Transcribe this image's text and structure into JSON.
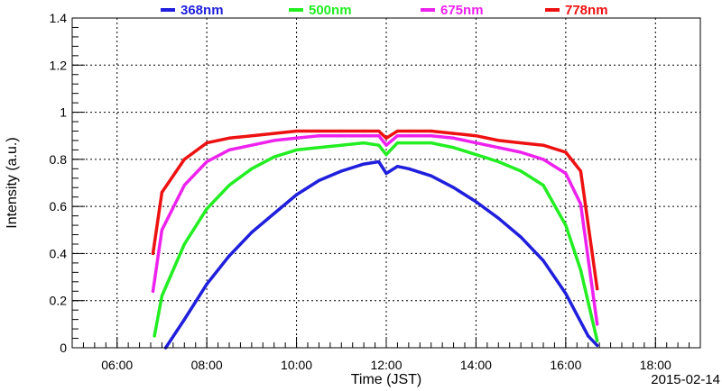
{
  "chart_data": {
    "type": "scatter",
    "xlabel": "Time (JST)",
    "ylabel": "Intensity (a.u.)",
    "date_label": "2015-02-14",
    "xlim": [
      "05:00",
      "19:00"
    ],
    "ylim": [
      0,
      1.4
    ],
    "x_ticks": [
      "06:00",
      "08:00",
      "10:00",
      "12:00",
      "14:00",
      "16:00",
      "18:00"
    ],
    "y_ticks": [
      "0",
      "0.2",
      "0.4",
      "0.6",
      "0.8",
      "1",
      "1.2",
      "1.4"
    ],
    "grid": true,
    "legend_position": "top",
    "series": [
      {
        "name": "368nm",
        "color": "#1f1fdc",
        "x": [
          "07:05",
          "07:30",
          "08:00",
          "08:30",
          "09:00",
          "09:30",
          "10:00",
          "10:30",
          "11:00",
          "11:30",
          "11:50",
          "12:00",
          "12:15",
          "12:30",
          "13:00",
          "13:30",
          "14:00",
          "14:30",
          "15:00",
          "15:30",
          "16:00",
          "16:15",
          "16:30",
          "16:42"
        ],
        "y": [
          0.0,
          0.12,
          0.27,
          0.39,
          0.49,
          0.57,
          0.65,
          0.71,
          0.75,
          0.78,
          0.79,
          0.74,
          0.77,
          0.76,
          0.73,
          0.68,
          0.62,
          0.55,
          0.47,
          0.37,
          0.23,
          0.14,
          0.05,
          0.01
        ]
      },
      {
        "name": "500nm",
        "color": "#22ee22",
        "x": [
          "06:50",
          "07:00",
          "07:30",
          "08:00",
          "08:30",
          "09:00",
          "09:30",
          "10:00",
          "10:30",
          "11:00",
          "11:30",
          "11:50",
          "12:00",
          "12:15",
          "12:30",
          "13:00",
          "13:30",
          "14:00",
          "14:30",
          "15:00",
          "15:30",
          "16:00",
          "16:20",
          "16:42"
        ],
        "y": [
          0.05,
          0.22,
          0.44,
          0.59,
          0.69,
          0.76,
          0.81,
          0.84,
          0.85,
          0.86,
          0.87,
          0.86,
          0.82,
          0.87,
          0.87,
          0.87,
          0.85,
          0.82,
          0.79,
          0.75,
          0.69,
          0.52,
          0.33,
          0.03
        ]
      },
      {
        "name": "675nm",
        "color": "#ee22ee",
        "x": [
          "06:48",
          "07:00",
          "07:30",
          "08:00",
          "08:30",
          "09:00",
          "09:30",
          "10:00",
          "10:30",
          "11:00",
          "11:30",
          "11:50",
          "12:00",
          "12:15",
          "12:30",
          "13:00",
          "13:30",
          "14:00",
          "14:30",
          "15:00",
          "15:30",
          "16:00",
          "16:20",
          "16:42"
        ],
        "y": [
          0.24,
          0.5,
          0.69,
          0.79,
          0.84,
          0.86,
          0.88,
          0.89,
          0.9,
          0.9,
          0.9,
          0.9,
          0.86,
          0.9,
          0.9,
          0.9,
          0.89,
          0.87,
          0.85,
          0.83,
          0.8,
          0.74,
          0.61,
          0.1
        ]
      },
      {
        "name": "778nm",
        "color": "#ee1111",
        "x": [
          "06:48",
          "07:00",
          "07:30",
          "08:00",
          "08:30",
          "09:00",
          "09:30",
          "10:00",
          "10:30",
          "11:00",
          "11:30",
          "11:50",
          "12:00",
          "12:15",
          "12:30",
          "13:00",
          "13:30",
          "14:00",
          "14:30",
          "15:00",
          "15:30",
          "16:00",
          "16:20",
          "16:42"
        ],
        "y": [
          0.4,
          0.66,
          0.8,
          0.87,
          0.89,
          0.9,
          0.91,
          0.92,
          0.92,
          0.92,
          0.92,
          0.92,
          0.89,
          0.92,
          0.92,
          0.92,
          0.91,
          0.9,
          0.88,
          0.87,
          0.86,
          0.83,
          0.75,
          0.25
        ]
      }
    ]
  }
}
